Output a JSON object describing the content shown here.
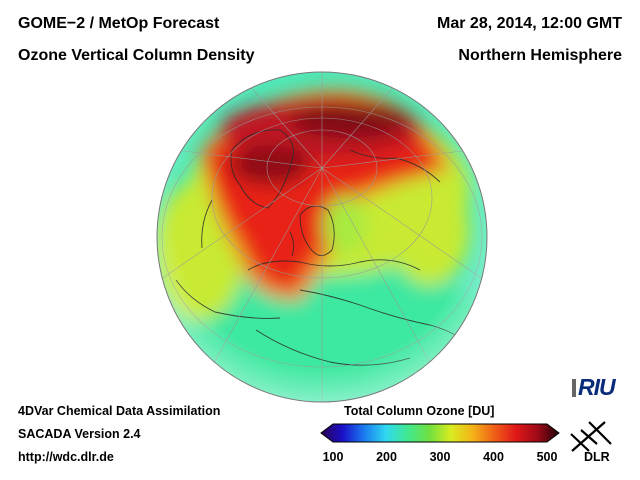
{
  "header": {
    "product": "GOME−2 / MetOp Forecast",
    "datetime": "Mar 28, 2014, 12:00 GMT",
    "quantity": "Ozone Vertical Column Density",
    "region": "Northern Hemisphere"
  },
  "footer": {
    "method": "4DVar Chemical Data Assimilation",
    "version": "SACADA Version 2.4",
    "url": "http://wdc.dlr.de"
  },
  "colorbar": {
    "title": "Total Column Ozone [DU]",
    "min": 100,
    "max": 500,
    "ticks": [
      "100",
      "200",
      "300",
      "400",
      "500"
    ],
    "colors": [
      "#2a0050",
      "#1a10c8",
      "#1a7cf0",
      "#30d8f0",
      "#40e890",
      "#70e040",
      "#d8ec20",
      "#f4b418",
      "#f06018",
      "#e01818",
      "#a00a18",
      "#200008"
    ]
  },
  "logos": {
    "riu": "RIU",
    "dlr": "DLR"
  }
}
